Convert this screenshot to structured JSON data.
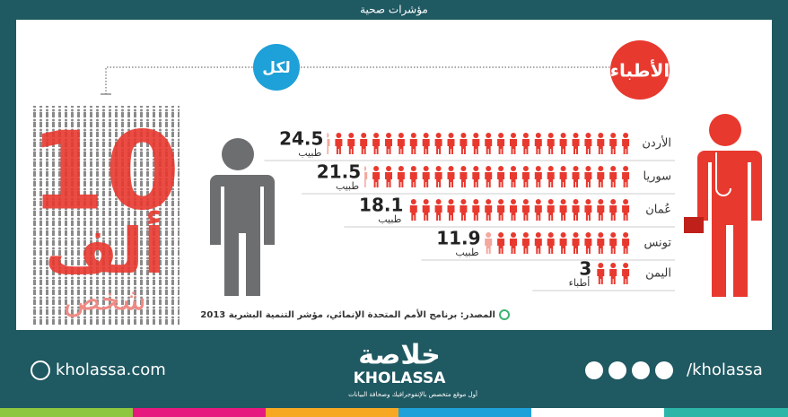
{
  "header": {
    "title": "مؤشرات صحية"
  },
  "chart_data": {
    "type": "pictogram",
    "heading": "الأطباء",
    "per_label": "لكل",
    "base": {
      "number": "10",
      "unit": "ألف",
      "noun": "شخص"
    },
    "categories": [
      "الأردن",
      "سوريا",
      "عُمان",
      "تونس",
      "اليمن"
    ],
    "values": [
      24.5,
      21.5,
      18.1,
      11.9,
      3
    ],
    "unit_labels": [
      "طبيب",
      "طبيب",
      "طبيب",
      "طبيب",
      "أطباء"
    ],
    "color": "#e8392f",
    "source": "المصدر: برنامج الأمم المتحدة الإنمائي، مؤشر التنمية البشرية 2013"
  },
  "footer": {
    "website": "kholassa.com",
    "logo_ar": "خلاصة",
    "logo_en": "KHOLASSA",
    "tagline": "أول موقع متخصص بالإنفوجرافيك وصحافة البيانات",
    "social": "/kholassa"
  }
}
